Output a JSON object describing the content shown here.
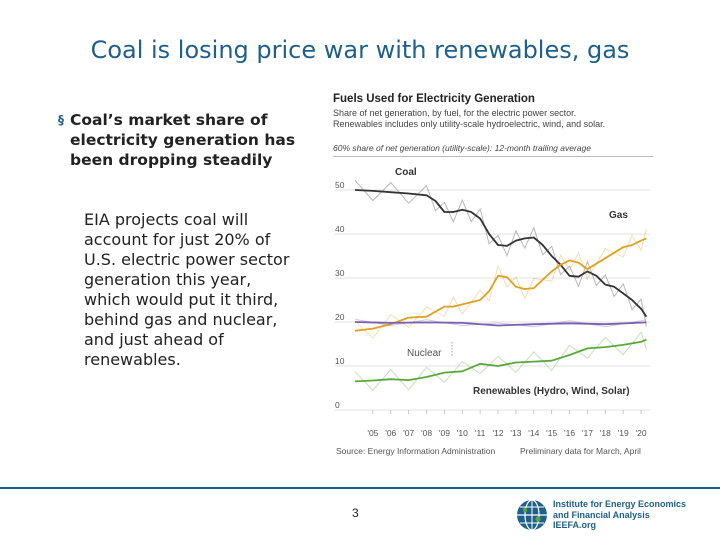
{
  "slide": {
    "title": "Coal is losing price war with renewables, gas",
    "bullet_marker": "§",
    "bullet": "Coal’s market share of electricity generation has been dropping steadily",
    "subtext": "EIA projects coal will account for just 20% of U.S. electric power sector generation this year, which would put it third, behind gas and nuclear, and just ahead of renewables.",
    "page_number": "3"
  },
  "footer": {
    "org_lines": [
      "Institute for Energy Economics",
      "and Financial Analysis",
      "IEEFA.org"
    ]
  },
  "colors": {
    "title": "#1f5f8b",
    "coal": "#333333",
    "gas": "#e0a020",
    "nuclear": "#7a5fb0",
    "renewables": "#5aa83c"
  },
  "chart_data": {
    "type": "line",
    "title": "Fuels Used for Electricity Generation",
    "subtitle_lines": [
      "Share of net generation, by fuel, for the electric power sector.",
      "Renewables includes only utility-scale hydroelectric, wind, and solar."
    ],
    "unit_label": "60% share of net generation (utility-scale): 12-month trailing average",
    "source": "Source: Energy Information Administration",
    "note": "Preliminary data for March, April",
    "ylim": [
      0,
      60
    ],
    "yticks": [
      "0",
      "10",
      "20",
      "30",
      "40",
      "50"
    ],
    "xlim": [
      2004,
      2020.5
    ],
    "xticks": [
      "'05",
      "'06",
      "'07",
      "'08",
      "'09",
      "'10",
      "'11",
      "'12",
      "'13",
      "'14",
      "'15",
      "'16",
      "'17",
      "'18",
      "'19",
      "'20"
    ],
    "grid": true,
    "series": [
      {
        "name": "Coal",
        "color": "#333333",
        "x": [
          2004,
          2005,
          2006,
          2007,
          2008,
          2008.5,
          2009,
          2009.5,
          2010,
          2010.5,
          2011,
          2011.5,
          2012,
          2012.5,
          2013,
          2013.5,
          2014,
          2014.5,
          2015,
          2015.5,
          2016,
          2016.5,
          2017,
          2017.5,
          2018,
          2018.5,
          2019,
          2019.5,
          2020,
          2020.3
        ],
        "y": [
          50,
          49.8,
          49.5,
          49.2,
          48.8,
          47.5,
          45,
          45,
          45.5,
          45,
          43.5,
          40,
          37.5,
          37.3,
          38.5,
          39,
          39.2,
          37.5,
          35,
          33,
          30.5,
          30.3,
          31.5,
          30.5,
          28.5,
          28,
          26.5,
          25,
          23,
          21.2
        ]
      },
      {
        "name": "Gas",
        "color": "#e0a020",
        "x": [
          2004,
          2005,
          2006,
          2007,
          2008,
          2009,
          2009.5,
          2010,
          2011,
          2011.5,
          2012,
          2012.5,
          2013,
          2013.5,
          2014,
          2015,
          2015.5,
          2016,
          2016.5,
          2017,
          2018,
          2019,
          2019.5,
          2020,
          2020.3
        ],
        "y": [
          18,
          18.5,
          19.5,
          21,
          21.2,
          23.5,
          23.5,
          24,
          25,
          27,
          30.5,
          30.2,
          28,
          27.5,
          27.7,
          31.5,
          33,
          34,
          33.5,
          32,
          34.5,
          37,
          37.5,
          38.5,
          39
        ]
      },
      {
        "name": "Nuclear",
        "color": "#7a5fb0",
        "x": [
          2004,
          2006,
          2008,
          2010,
          2012,
          2014,
          2016,
          2018,
          2020.3
        ],
        "y": [
          20,
          19.8,
          19.9,
          19.8,
          19.2,
          19.5,
          19.7,
          19.5,
          19.9
        ]
      },
      {
        "name": "Renewables (Hydro, Wind, Solar)",
        "color": "#5aa83c",
        "x": [
          2004,
          2005,
          2006,
          2007,
          2008,
          2009,
          2010,
          2011,
          2012,
          2013,
          2014,
          2015,
          2016,
          2017,
          2018,
          2019,
          2020,
          2020.3
        ],
        "y": [
          6.5,
          6.7,
          7,
          6.8,
          7.5,
          8.5,
          8.8,
          10.5,
          10,
          10.8,
          11,
          11.2,
          12.5,
          14,
          14.3,
          14.8,
          15.5,
          16
        ]
      }
    ]
  }
}
